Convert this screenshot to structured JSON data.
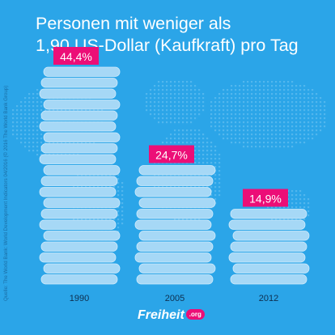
{
  "title": {
    "line1": "Personen mit weniger als",
    "line2": "1,90 US-Dollar (Kaufkraft) pro Tag"
  },
  "source": "Quelle: The World Bank: World Development Indicators 04/2016 (© 2016 The World Bank Group)",
  "logo": {
    "name": "Freiheit",
    "badge": ".org"
  },
  "colors": {
    "background": "#2ba5e8",
    "coin": "#a6d8f6",
    "coin_edge": "#cfeafb",
    "label": "#ec0e77"
  },
  "chart_data": {
    "type": "bar",
    "categories": [
      "1990",
      "2005",
      "2012"
    ],
    "values": [
      44.4,
      24.7,
      14.9
    ],
    "value_labels": [
      "44,4%",
      "24,7%",
      "14,9%"
    ],
    "unit": "%",
    "title": "Personen mit weniger als 1,90 US-Dollar (Kaufkraft) pro Tag",
    "xlabel": "",
    "ylabel": "",
    "grid": false,
    "legend": "none"
  }
}
